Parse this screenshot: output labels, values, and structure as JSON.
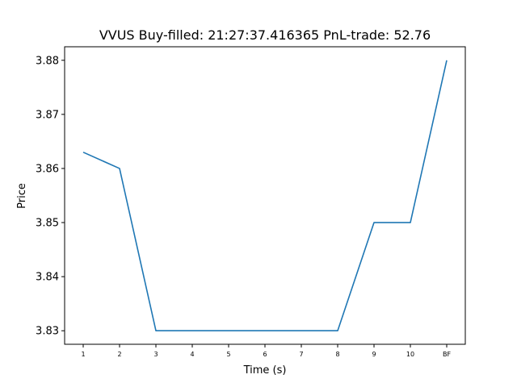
{
  "chart_data": {
    "type": "line",
    "title": "VVUS  Buy-filled:  21:27:37.416365  PnL-trade:  52.76",
    "xlabel": "Time (s)",
    "ylabel": "Price",
    "categories": [
      "1",
      "2",
      "3",
      "4",
      "5",
      "6",
      "7",
      "8",
      "9",
      "10",
      "BF"
    ],
    "values": [
      3.863,
      3.86,
      3.83,
      3.83,
      3.83,
      3.83,
      3.83,
      3.83,
      3.85,
      3.85,
      3.88
    ],
    "ylim": [
      3.8275,
      3.8825
    ],
    "yticks": [
      "3.83",
      "3.84",
      "3.85",
      "3.86",
      "3.87",
      "3.88"
    ],
    "grid": false,
    "line_color": "#1f77b4"
  }
}
